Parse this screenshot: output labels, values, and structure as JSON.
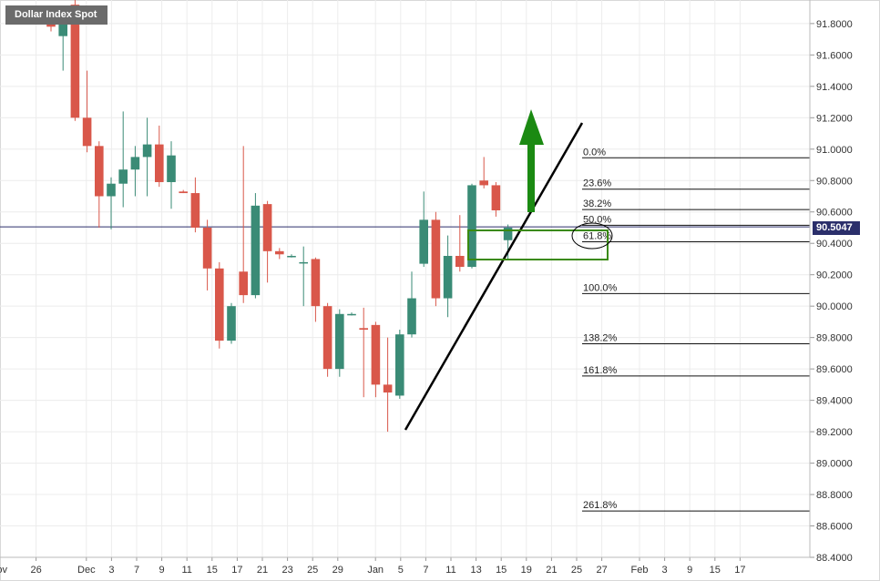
{
  "chart_data": {
    "type": "candlestick",
    "title": "Dollar Index Spot",
    "last_price_label": "90.5047",
    "last_price": 90.5047,
    "ylim": [
      88.4,
      91.95
    ],
    "yticks": [
      {
        "value": 91.8,
        "label": "91.8000"
      },
      {
        "value": 91.6,
        "label": "91.6000"
      },
      {
        "value": 91.4,
        "label": "91.4000"
      },
      {
        "value": 91.2,
        "label": "91.2000"
      },
      {
        "value": 91.0,
        "label": "91.0000"
      },
      {
        "value": 90.8,
        "label": "90.8000"
      },
      {
        "value": 90.6,
        "label": "90.6000"
      },
      {
        "value": 90.4,
        "label": "90.4000"
      },
      {
        "value": 90.2,
        "label": "90.2000"
      },
      {
        "value": 90.0,
        "label": "90.0000"
      },
      {
        "value": 89.8,
        "label": "89.8000"
      },
      {
        "value": 89.6,
        "label": "89.6000"
      },
      {
        "value": 89.4,
        "label": "89.4000"
      },
      {
        "value": 89.2,
        "label": "89.2000"
      },
      {
        "value": 89.0,
        "label": "89.0000"
      },
      {
        "value": 88.8,
        "label": "88.8000"
      },
      {
        "value": 88.6,
        "label": "88.6000"
      },
      {
        "value": 88.4,
        "label": "88.4000"
      }
    ],
    "xticks": [
      {
        "slot": -0.5,
        "label": "Nov"
      },
      {
        "slot": 1,
        "label": "26"
      },
      {
        "slot": 3,
        "label": "Dec"
      },
      {
        "slot": 4,
        "label": "3"
      },
      {
        "slot": 5,
        "label": "7"
      },
      {
        "slot": 6,
        "label": "9"
      },
      {
        "slot": 7,
        "label": "11"
      },
      {
        "slot": 8,
        "label": "15"
      },
      {
        "slot": 9,
        "label": "17"
      },
      {
        "slot": 10,
        "label": "21"
      },
      {
        "slot": 11,
        "label": "23"
      },
      {
        "slot": 12,
        "label": "25"
      },
      {
        "slot": 13,
        "label": "29"
      },
      {
        "slot": 14.5,
        "label": "Jan"
      },
      {
        "slot": 15.5,
        "label": "5"
      },
      {
        "slot": 16.5,
        "label": "7"
      },
      {
        "slot": 17.5,
        "label": "11"
      },
      {
        "slot": 18.5,
        "label": "13"
      },
      {
        "slot": 19.5,
        "label": "15"
      },
      {
        "slot": 20.5,
        "label": "19"
      },
      {
        "slot": 21.5,
        "label": "21"
      },
      {
        "slot": 22.5,
        "label": "25"
      },
      {
        "slot": 23.5,
        "label": "27"
      },
      {
        "slot": 25,
        "label": "Feb"
      },
      {
        "slot": 26,
        "label": "3"
      },
      {
        "slot": 27,
        "label": "9"
      },
      {
        "slot": 28,
        "label": "15"
      },
      {
        "slot": 29,
        "label": "17"
      }
    ],
    "candles": [
      {
        "o": 91.87,
        "h": 91.9,
        "l": 91.75,
        "c": 91.78
      },
      {
        "o": 91.72,
        "h": 91.9,
        "l": 91.5,
        "c": 91.85
      },
      {
        "o": 91.92,
        "h": 91.95,
        "l": 91.18,
        "c": 91.2
      },
      {
        "o": 91.2,
        "h": 91.5,
        "l": 90.98,
        "c": 91.02
      },
      {
        "o": 91.02,
        "h": 91.05,
        "l": 90.5,
        "c": 90.7
      },
      {
        "o": 90.7,
        "h": 90.82,
        "l": 90.49,
        "c": 90.78
      },
      {
        "o": 90.78,
        "h": 91.24,
        "l": 90.63,
        "c": 90.87
      },
      {
        "o": 90.87,
        "h": 91.02,
        "l": 90.7,
        "c": 90.95
      },
      {
        "o": 90.95,
        "h": 91.2,
        "l": 90.7,
        "c": 91.03
      },
      {
        "o": 91.03,
        "h": 91.15,
        "l": 90.76,
        "c": 90.79
      },
      {
        "o": 90.79,
        "h": 91.05,
        "l": 90.62,
        "c": 90.96
      },
      {
        "o": 90.73,
        "h": 90.74,
        "l": 90.72,
        "c": 90.72
      },
      {
        "o": 90.72,
        "h": 90.82,
        "l": 90.47,
        "c": 90.5
      },
      {
        "o": 90.5,
        "h": 90.55,
        "l": 90.1,
        "c": 90.24
      },
      {
        "o": 90.24,
        "h": 90.28,
        "l": 89.73,
        "c": 89.78
      },
      {
        "o": 89.78,
        "h": 90.02,
        "l": 89.76,
        "c": 90.0
      },
      {
        "o": 90.22,
        "h": 91.02,
        "l": 90.02,
        "c": 90.07
      },
      {
        "o": 90.07,
        "h": 90.72,
        "l": 90.05,
        "c": 90.64
      },
      {
        "o": 90.65,
        "h": 90.67,
        "l": 90.15,
        "c": 90.35
      },
      {
        "o": 90.35,
        "h": 90.37,
        "l": 90.3,
        "c": 90.33
      },
      {
        "o": 90.32,
        "h": 90.33,
        "l": 90.31,
        "c": 90.32
      },
      {
        "o": 90.28,
        "h": 90.38,
        "l": 90.0,
        "c": 90.28
      },
      {
        "o": 90.3,
        "h": 90.31,
        "l": 89.9,
        "c": 90.0
      },
      {
        "o": 90.0,
        "h": 90.02,
        "l": 89.55,
        "c": 89.6
      },
      {
        "o": 89.6,
        "h": 89.98,
        "l": 89.55,
        "c": 89.95
      },
      {
        "o": 89.95,
        "h": 89.96,
        "l": 89.94,
        "c": 89.95
      },
      {
        "o": 89.86,
        "h": 89.99,
        "l": 89.42,
        "c": 89.85
      },
      {
        "o": 89.88,
        "h": 89.9,
        "l": 89.42,
        "c": 89.5
      },
      {
        "o": 89.5,
        "h": 89.8,
        "l": 89.2,
        "c": 89.45
      },
      {
        "o": 89.43,
        "h": 89.85,
        "l": 89.41,
        "c": 89.82
      },
      {
        "o": 89.82,
        "h": 90.22,
        "l": 89.8,
        "c": 90.05
      },
      {
        "o": 90.27,
        "h": 90.73,
        "l": 90.25,
        "c": 90.55
      },
      {
        "o": 90.55,
        "h": 90.6,
        "l": 90.0,
        "c": 90.05
      },
      {
        "o": 90.05,
        "h": 90.45,
        "l": 89.93,
        "c": 90.32
      },
      {
        "o": 90.32,
        "h": 90.58,
        "l": 90.22,
        "c": 90.25
      },
      {
        "o": 90.25,
        "h": 90.78,
        "l": 90.24,
        "c": 90.77
      },
      {
        "o": 90.8,
        "h": 90.95,
        "l": 90.75,
        "c": 90.77
      },
      {
        "o": 90.77,
        "h": 90.79,
        "l": 90.57,
        "c": 90.61
      },
      {
        "o": 90.42,
        "h": 90.52,
        "l": 90.3,
        "c": 90.5
      }
    ],
    "fib_levels": [
      {
        "label": "0.0%",
        "value": 90.945
      },
      {
        "label": "23.6%",
        "value": 90.745
      },
      {
        "label": "38.2%",
        "value": 90.615
      },
      {
        "label": "50.0%",
        "value": 90.515
      },
      {
        "label": "61.8%",
        "value": 90.41
      },
      {
        "label": "100.0%",
        "value": 90.08
      },
      {
        "label": "138.2%",
        "value": 89.76
      },
      {
        "label": "161.8%",
        "value": 89.555
      },
      {
        "label": "261.8%",
        "value": 88.695
      }
    ],
    "colors": {
      "up": "#3a8b76",
      "down": "#d9574a",
      "last_price_line": "#2b2f6b",
      "annotation_green": "#1b8a12",
      "box_green": "#3a8a10",
      "grid": "#ececec"
    }
  }
}
